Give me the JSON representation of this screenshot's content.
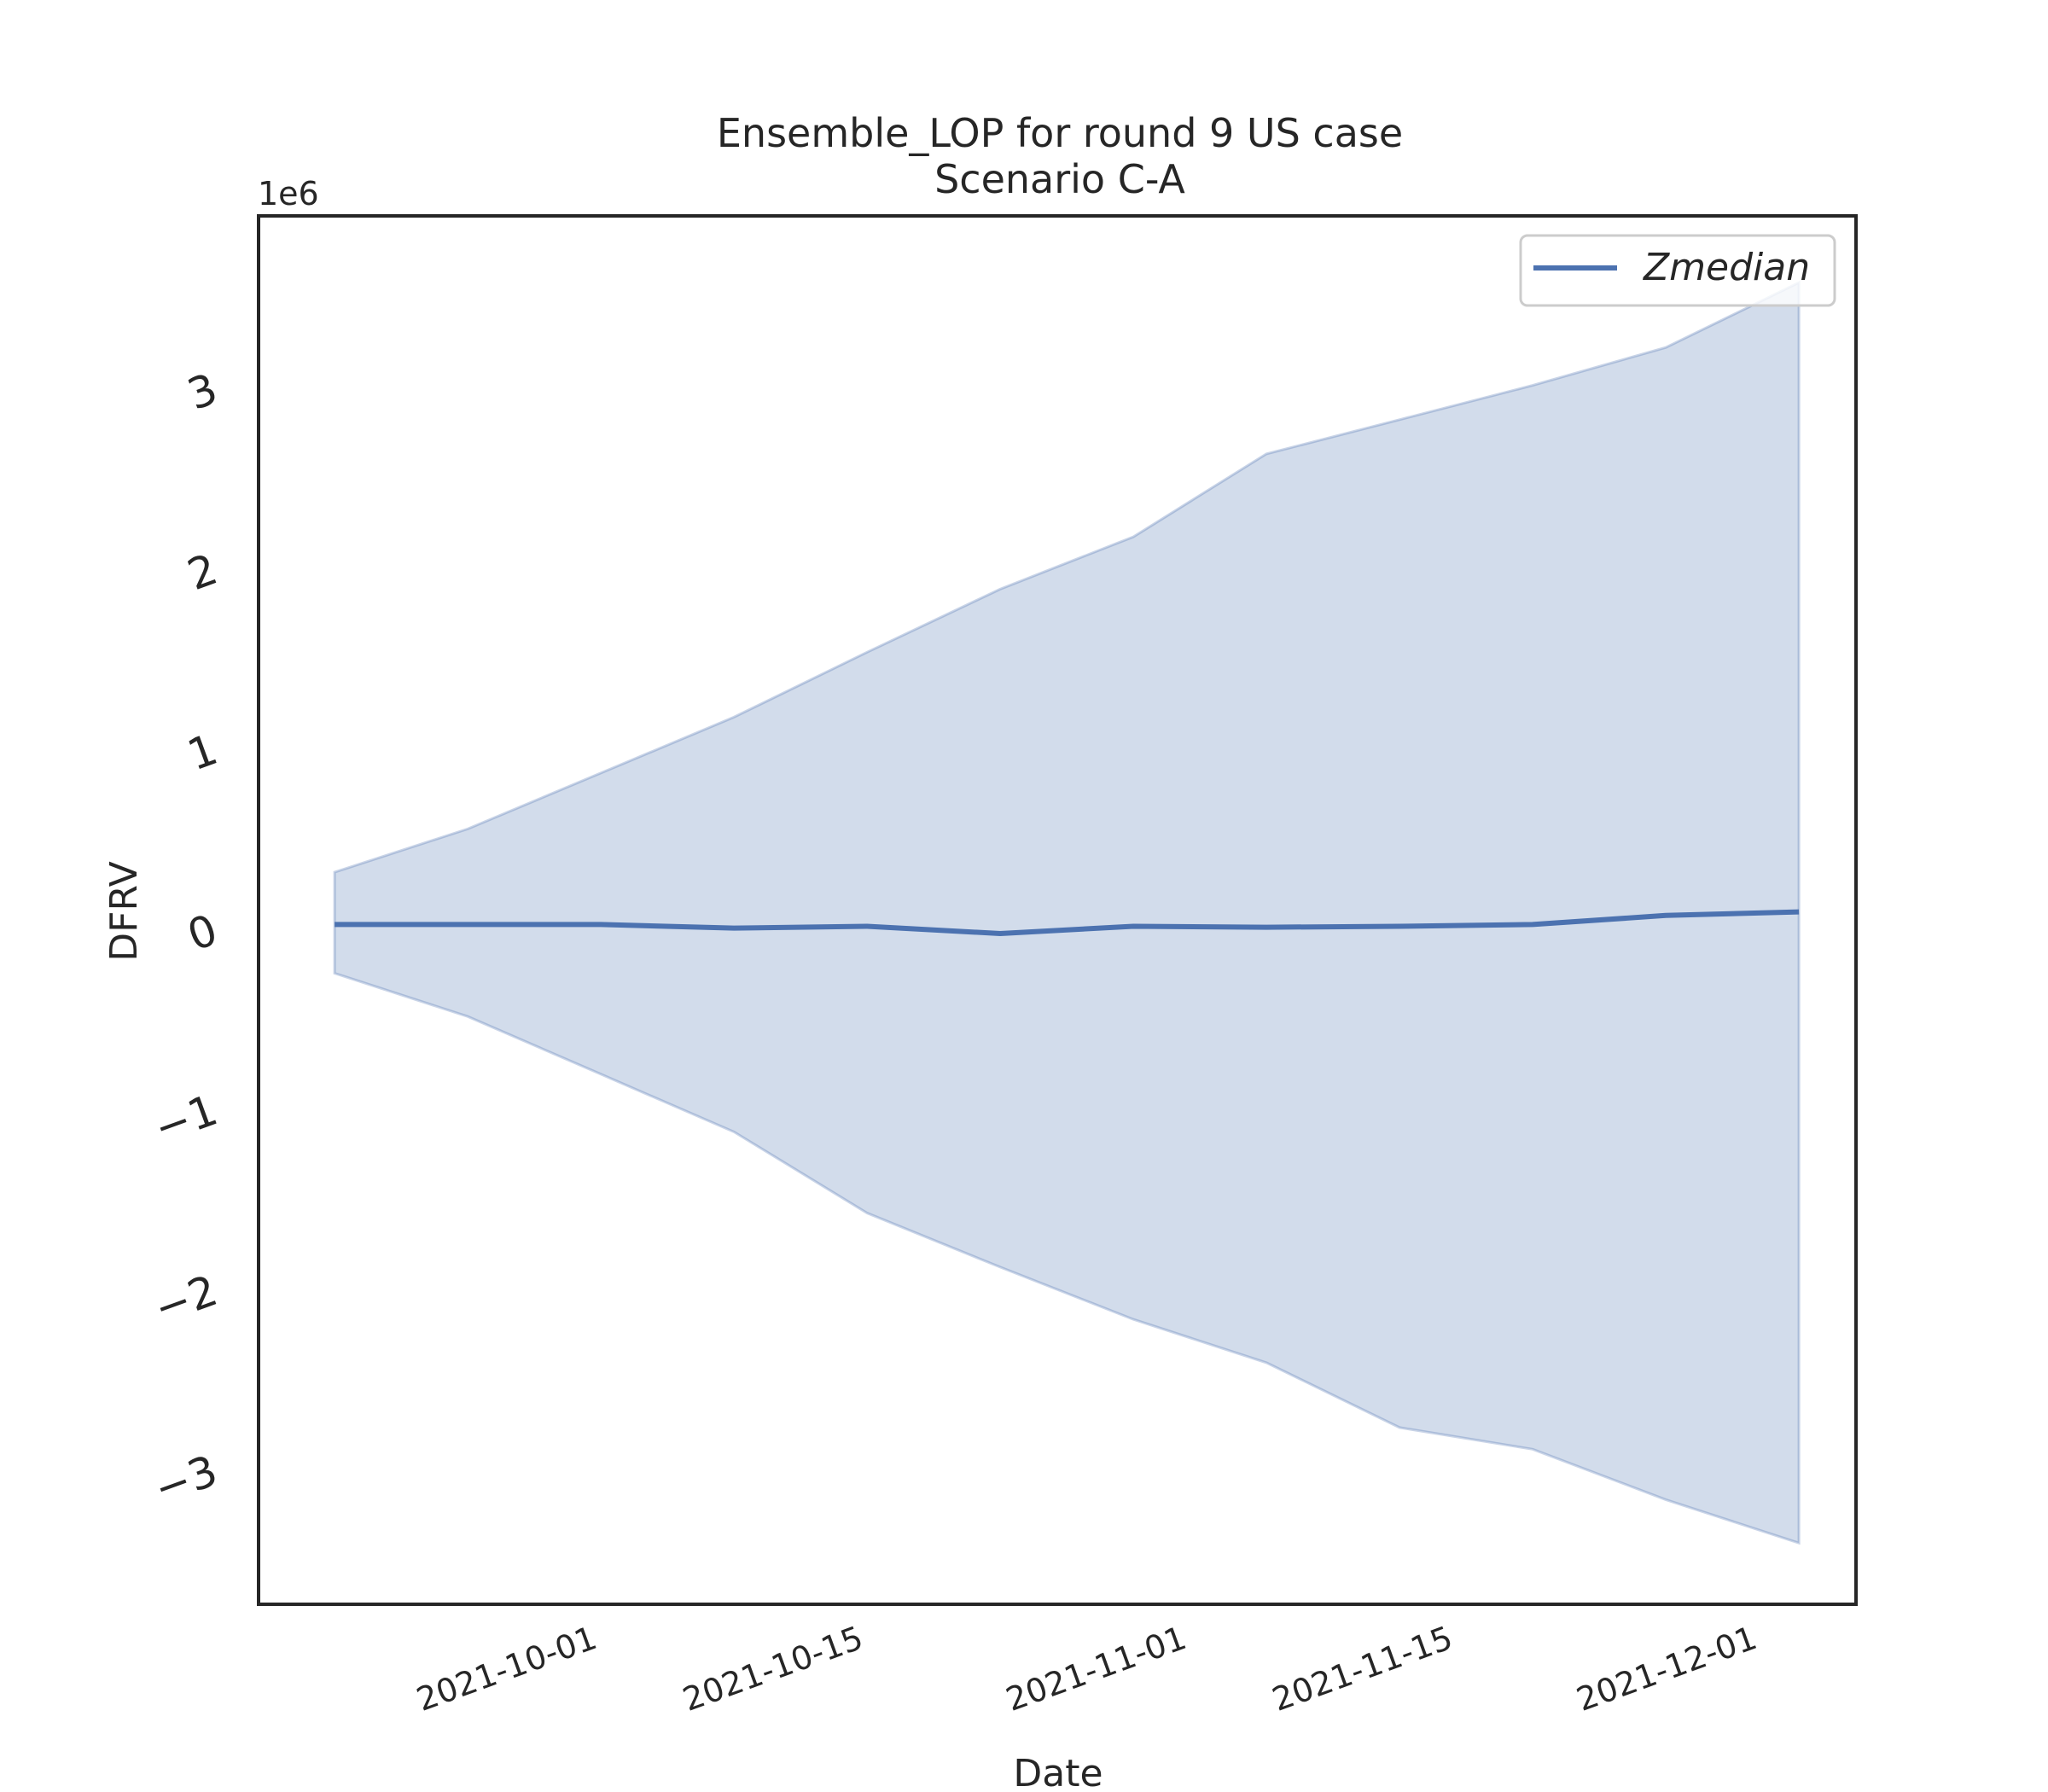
{
  "chart_data": {
    "type": "line",
    "title": "Ensemble_LOP for round 9 US case",
    "subtitle": "Scenario C-A",
    "xlabel": "Date",
    "ylabel": "DFRV",
    "y_offset_label": "1e6",
    "y_unit_multiplier": 1000000,
    "x": [
      "2021-09-18",
      "2021-09-25",
      "2021-10-02",
      "2021-10-09",
      "2021-10-16",
      "2021-10-23",
      "2021-10-30",
      "2021-11-06",
      "2021-11-13",
      "2021-11-20",
      "2021-11-27",
      "2021-12-04"
    ],
    "series": [
      {
        "name": "Zmedian",
        "type": "line",
        "color": "#4c72b0",
        "values": [
          20000,
          20000,
          20000,
          0,
          10000,
          -30000,
          10000,
          5000,
          10000,
          20000,
          70000,
          90000
        ]
      },
      {
        "type": "band",
        "color": "#4c72b0",
        "upper": [
          310000,
          550000,
          860000,
          1170000,
          1530000,
          1880000,
          2170000,
          2630000,
          2820000,
          3010000,
          3220000,
          3580000
        ],
        "lower": [
          -250000,
          -490000,
          -810000,
          -1130000,
          -1580000,
          -1880000,
          -2170000,
          -2410000,
          -2770000,
          -2890000,
          -3170000,
          -3410000
        ]
      }
    ],
    "xticks": [
      "2021-10-01",
      "2021-10-15",
      "2021-11-01",
      "2021-11-15",
      "2021-12-01"
    ],
    "yticks": [
      -3,
      -2,
      -1,
      0,
      1,
      2,
      3
    ],
    "xlim": [
      "2021-09-14",
      "2021-12-07"
    ],
    "ylim": [
      -3750000,
      3950000
    ],
    "grid": false,
    "legend": {
      "placement": "top-right",
      "entries": [
        "Zmedian"
      ]
    }
  }
}
